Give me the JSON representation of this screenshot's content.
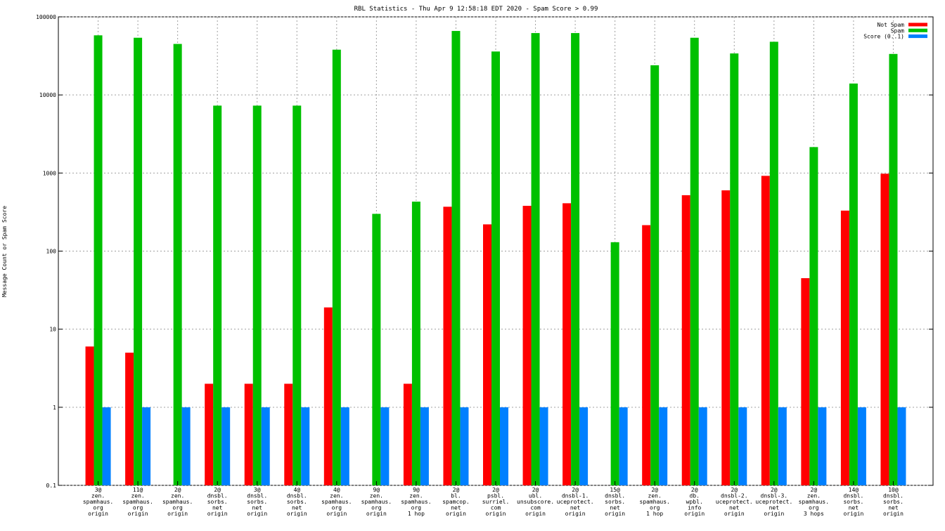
{
  "chart_data": {
    "type": "bar",
    "title": "RBL Statistics - Thu Apr  9 12:58:18 EDT 2020 - Spam Score > 0.99",
    "ylabel": "Message Count or Spam Score",
    "xlabel": "",
    "yscale": "log",
    "ylim": [
      0.1,
      100000
    ],
    "yticks": [
      "0.1",
      "1",
      "10",
      "100",
      "1000",
      "10000",
      "100000"
    ],
    "grid": true,
    "legend_position": "top-right",
    "colors": {
      "not_spam": "#ff0000",
      "spam": "#00c000",
      "score": "#0080ff"
    },
    "categories": [
      [
        "3@",
        "zen.",
        "spamhaus.",
        "org",
        "origin"
      ],
      [
        "11@",
        "zen.",
        "spamhaus.",
        "org",
        "origin"
      ],
      [
        "2@",
        "zen.",
        "spamhaus.",
        "org",
        "origin"
      ],
      [
        "2@",
        "dnsbl.",
        "sorbs.",
        "net",
        "origin"
      ],
      [
        "3@",
        "dnsbl.",
        "sorbs.",
        "net",
        "origin"
      ],
      [
        "4@",
        "dnsbl.",
        "sorbs.",
        "net",
        "origin"
      ],
      [
        "4@",
        "zen.",
        "spamhaus.",
        "org",
        "origin"
      ],
      [
        "9@",
        "zen.",
        "spamhaus.",
        "org",
        "origin"
      ],
      [
        "9@",
        "zen.",
        "spamhaus.",
        "org",
        "1 hop"
      ],
      [
        "2@",
        "bl.",
        "spamcop.",
        "net",
        "origin"
      ],
      [
        "2@",
        "psbl.",
        "surriel.",
        "com",
        "origin"
      ],
      [
        "2@",
        "ubl.",
        "unsubscore.",
        "com",
        "origin"
      ],
      [
        "2@",
        "dnsbl-1.",
        "uceprotect.",
        "net",
        "origin"
      ],
      [
        "15@",
        "dnsbl.",
        "sorbs.",
        "net",
        "origin"
      ],
      [
        "2@",
        "zen.",
        "spamhaus.",
        "org",
        "1 hop"
      ],
      [
        "2@",
        "db.",
        "wpbl.",
        "info",
        "origin"
      ],
      [
        "2@",
        "dnsbl-2.",
        "uceprotect.",
        "net",
        "origin"
      ],
      [
        "2@",
        "dnsbl-3.",
        "uceprotect.",
        "net",
        "origin"
      ],
      [
        "2@",
        "zen.",
        "spamhaus.",
        "org",
        "3 hops"
      ],
      [
        "14@",
        "dnsbl.",
        "sorbs.",
        "net",
        "origin"
      ],
      [
        "10@",
        "dnsbl.",
        "sorbs.",
        "net",
        "origin"
      ]
    ],
    "series": [
      {
        "name": "Not Spam",
        "values": [
          6,
          5,
          null,
          2,
          2,
          2,
          19,
          null,
          2,
          370,
          220,
          380,
          410,
          null,
          215,
          520,
          600,
          920,
          45,
          330,
          980
        ]
      },
      {
        "name": "Spam",
        "values": [
          58000,
          54000,
          45000,
          7300,
          7300,
          7300,
          38000,
          300,
          430,
          66000,
          36000,
          62000,
          62000,
          130,
          24000,
          54000,
          34000,
          48000,
          2150,
          14000,
          33500
        ]
      },
      {
        "name": "Score (0..1)",
        "values": [
          1,
          1,
          1,
          1,
          1,
          1,
          1,
          1,
          1,
          1,
          1,
          1,
          1,
          1,
          1,
          1,
          1,
          1,
          1,
          1,
          1
        ]
      }
    ]
  }
}
